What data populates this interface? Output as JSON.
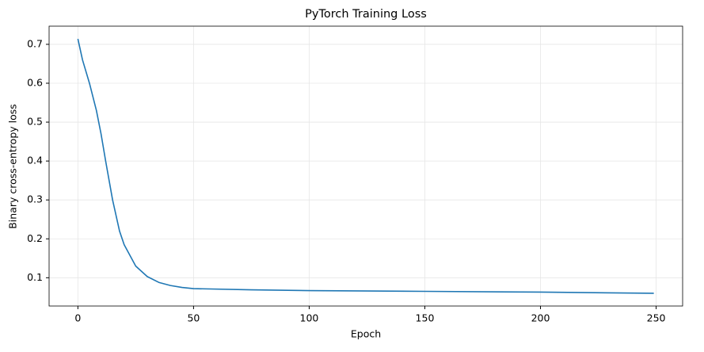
{
  "chart_data": {
    "type": "line",
    "title": "PyTorch Training Loss",
    "x_label": "Epoch",
    "y_label": "Binary cross-entropy loss",
    "x": [
      0,
      2,
      5,
      8,
      10,
      12,
      15,
      18,
      20,
      25,
      30,
      35,
      40,
      45,
      50,
      75,
      100,
      150,
      200,
      249
    ],
    "series": [
      {
        "name": "loss",
        "color": "#1f77b4",
        "values": [
          0.714,
          0.66,
          0.6,
          0.53,
          0.47,
          0.4,
          0.3,
          0.22,
          0.185,
          0.13,
          0.103,
          0.088,
          0.08,
          0.075,
          0.072,
          0.069,
          0.067,
          0.065,
          0.063,
          0.06
        ]
      }
    ],
    "xlim": [
      -12.45,
      261.45
    ],
    "xticks": [
      0,
      50,
      100,
      150,
      200,
      250
    ],
    "ylim": [
      0.0273,
      0.7467
    ],
    "yticks": [
      0.1,
      0.2,
      0.3,
      0.4,
      0.5,
      0.6,
      0.7
    ],
    "grid": true
  }
}
